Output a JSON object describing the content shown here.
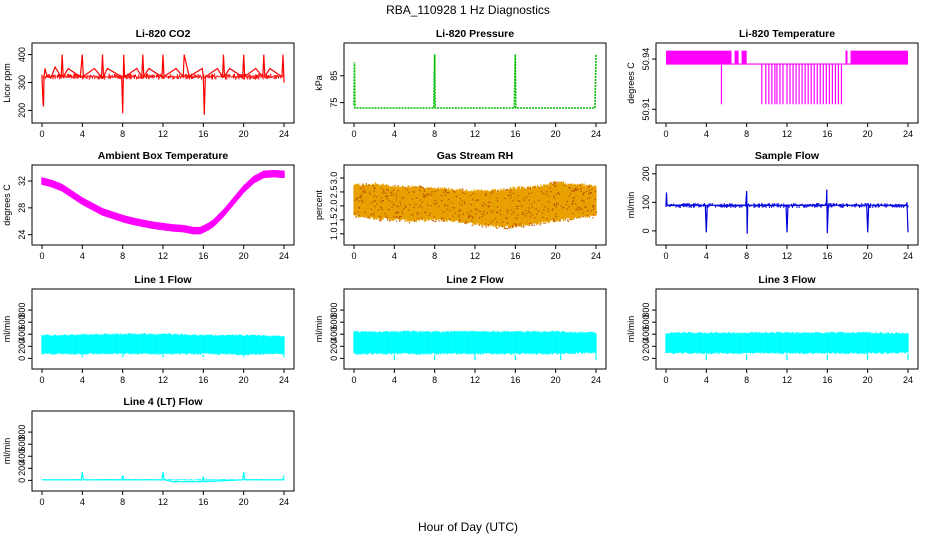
{
  "figure": {
    "title": "RBA_110928  1 Hz Diagnostics",
    "xlabel": "Hour of Day (UTC)"
  },
  "chart_data": [
    {
      "id": "co2",
      "type": "line",
      "title": "Li-820 CO2",
      "ylabel": "Licor ppm",
      "color": "#ff0000",
      "xlim": [
        0,
        24
      ],
      "ylim": [
        180,
        420
      ],
      "xticks": [
        0,
        4,
        8,
        12,
        16,
        20,
        24
      ],
      "yticks": [
        200,
        300,
        400
      ],
      "x": [
        0,
        0.1,
        0.15,
        0.2,
        0.3,
        0.5,
        0.9,
        1.3,
        1.9,
        2.0,
        2.1,
        2.6,
        3.8,
        4.0,
        4.1,
        5.2,
        5.9,
        6.0,
        6.1,
        6.5,
        7.9,
        8.0,
        8.1,
        8.2,
        9.4,
        9.9,
        10.0,
        10.1,
        10.6,
        11.9,
        12.0,
        12.1,
        13.3,
        14.0,
        14.1,
        14.6,
        15.9,
        16.0,
        16.1,
        16.2,
        17.4,
        17.9,
        18.0,
        18.1,
        18.6,
        19.9,
        20.0,
        20.1,
        21.2,
        21.9,
        22.0,
        22.1,
        22.6,
        23.8,
        23.9,
        24.0
      ],
      "y": [
        320,
        230,
        214,
        320,
        350,
        320,
        318,
        355,
        320,
        400,
        320,
        350,
        320,
        400,
        322,
        350,
        320,
        400,
        322,
        350,
        320,
        190,
        400,
        320,
        350,
        320,
        400,
        322,
        350,
        320,
        400,
        322,
        350,
        320,
        400,
        322,
        350,
        320,
        185,
        320,
        350,
        320,
        400,
        322,
        350,
        320,
        400,
        322,
        350,
        320,
        400,
        322,
        350,
        320,
        400,
        300
      ],
      "noise": [
        310,
        332
      ]
    },
    {
      "id": "pressure",
      "type": "line",
      "title": "Li-820 Pressure",
      "ylabel": "kPa",
      "color": "#00bb00",
      "xlim": [
        0,
        24
      ],
      "ylim": [
        70,
        95
      ],
      "xticks": [
        0,
        4,
        8,
        12,
        16,
        20,
        24
      ],
      "yticks": [
        75,
        85
      ],
      "x": [
        0,
        0.05,
        0.1,
        0.3,
        7.9,
        8.0,
        8.05,
        8.1,
        15.9,
        16.0,
        16.05,
        16.1,
        23.9,
        24.0
      ],
      "y": [
        74,
        90,
        73,
        73,
        73,
        93,
        73,
        73,
        73,
        93,
        73,
        73,
        73,
        93
      ]
    },
    {
      "id": "licor_temp",
      "type": "line",
      "title": "Li-820 Temperature",
      "ylabel": "degrees C",
      "color": "#ff00ff",
      "xlim": [
        0,
        24
      ],
      "ylim": [
        50.906,
        50.946
      ],
      "xticks": [
        0,
        4,
        8,
        12,
        16,
        20,
        24
      ],
      "yticks": [
        50.91,
        50.94
      ],
      "levels": [
        50.945,
        50.937,
        50.913
      ],
      "upper_segments": [
        [
          0,
          6.5
        ],
        [
          6.8,
          7.2
        ],
        [
          7.5,
          8.0
        ],
        [
          17.8,
          18.0
        ],
        [
          18.3,
          24
        ]
      ],
      "lower_ticks": [
        5.5,
        9.5,
        9.9,
        10.2,
        10.5,
        10.8,
        11.0,
        11.3,
        11.6,
        12.0,
        12.3,
        12.6,
        12.9,
        13.2,
        13.5,
        13.8,
        14.1,
        14.4,
        14.7,
        15.0,
        15.3,
        15.6,
        15.9,
        16.2,
        16.5,
        16.8,
        17.1,
        17.4
      ]
    },
    {
      "id": "box_temp",
      "type": "line",
      "title": "Ambient Box Temperature",
      "ylabel": "degrees C",
      "color": "#ff00ff",
      "xlim": [
        0,
        24
      ],
      "ylim": [
        23.5,
        33.5
      ],
      "xticks": [
        0,
        4,
        8,
        12,
        16,
        20,
        24
      ],
      "yticks": [
        24,
        28,
        32
      ],
      "x": [
        0,
        1,
        2,
        3,
        4,
        5,
        6,
        7,
        8,
        9,
        10,
        11,
        12,
        13,
        14,
        15,
        15.7,
        16.5,
        17,
        18,
        19,
        20,
        21,
        22,
        23,
        24
      ],
      "y": [
        32,
        31.6,
        31,
        30,
        29,
        28.2,
        27.4,
        26.9,
        26.4,
        26,
        25.7,
        25.4,
        25.2,
        25.0,
        24.9,
        24.6,
        24.6,
        25.2,
        25.7,
        27.2,
        29,
        30.8,
        32.2,
        33,
        33.1,
        33.0
      ],
      "band": 0.55
    },
    {
      "id": "gas_rh",
      "type": "area",
      "title": "Gas Stream RH",
      "ylabel": "percent",
      "color": "#e8a000",
      "xlim": [
        0,
        24
      ],
      "ylim": [
        0.85,
        3.25
      ],
      "xticks": [
        0,
        4,
        8,
        12,
        16,
        20,
        24
      ],
      "yticks": [
        1.0,
        1.5,
        2.0,
        2.5,
        3.0
      ],
      "x": [
        0,
        2,
        4,
        6,
        8,
        10,
        12,
        14,
        16,
        18,
        20,
        22,
        24
      ],
      "upper": [
        2.8,
        2.85,
        2.75,
        2.75,
        2.7,
        2.65,
        2.6,
        2.6,
        2.7,
        2.75,
        2.9,
        2.85,
        2.75
      ],
      "lower": [
        1.6,
        1.5,
        1.45,
        1.4,
        1.45,
        1.4,
        1.3,
        1.2,
        1.2,
        1.3,
        1.4,
        1.5,
        1.6
      ]
    },
    {
      "id": "sample_flow",
      "type": "line",
      "title": "Sample Flow",
      "ylabel": "ml/min",
      "color": "#0000dd",
      "xlim": [
        0,
        24
      ],
      "ylim": [
        -25,
        210
      ],
      "xticks": [
        0,
        4,
        8,
        12,
        16,
        20,
        24
      ],
      "yticks": [
        0,
        100,
        200
      ],
      "x": [
        0,
        0.05,
        0.1,
        0.2,
        3.9,
        4.0,
        4.1,
        7.9,
        8.0,
        8.05,
        8.1,
        11.9,
        12.0,
        12.1,
        15.9,
        15.95,
        16.0,
        16.1,
        19.9,
        20.0,
        20.1,
        23.8,
        23.9,
        24.0
      ],
      "y": [
        90,
        135,
        90,
        90,
        90,
        -5,
        90,
        90,
        140,
        -10,
        90,
        90,
        -5,
        90,
        90,
        145,
        -8,
        90,
        90,
        -5,
        90,
        90,
        100,
        -5
      ],
      "noise": [
        80,
        98
      ]
    },
    {
      "id": "line1",
      "type": "area",
      "title": "Line 1 Flow",
      "ylabel": "ml/min",
      "color": "#00ffff",
      "xlim": [
        0,
        24
      ],
      "ylim": [
        -60,
        1050
      ],
      "xticks": [
        0,
        4,
        8,
        12,
        16,
        20,
        24
      ],
      "yticks": [
        0,
        200,
        400,
        600,
        800
      ],
      "x": [
        0,
        4,
        8,
        12,
        16,
        20,
        24
      ],
      "upper": [
        400,
        410,
        420,
        420,
        400,
        400,
        380
      ],
      "lower": [
        60,
        60,
        60,
        60,
        60,
        50,
        60
      ],
      "dips": [
        4,
        8,
        12,
        16,
        20,
        24
      ],
      "dipvalue": 20
    },
    {
      "id": "line2",
      "type": "area",
      "title": "Line 2 Flow",
      "ylabel": "ml/min",
      "color": "#00ffff",
      "xlim": [
        0,
        24
      ],
      "ylim": [
        -60,
        1050
      ],
      "xticks": [
        0,
        4,
        8,
        12,
        16,
        20,
        24
      ],
      "yticks": [
        0,
        200,
        400,
        600,
        800
      ],
      "x": [
        0,
        4,
        8,
        12,
        16,
        20,
        24
      ],
      "upper": [
        460,
        460,
        460,
        460,
        460,
        460,
        440
      ],
      "lower": [
        60,
        60,
        60,
        60,
        60,
        60,
        80
      ],
      "dips": [
        4,
        8,
        12,
        16,
        20.5,
        24
      ],
      "dipvalue": -30
    },
    {
      "id": "line3",
      "type": "area",
      "title": "Line 3 Flow",
      "ylabel": "ml/min",
      "color": "#00ffff",
      "xlim": [
        0,
        24
      ],
      "ylim": [
        -60,
        1050
      ],
      "xticks": [
        0,
        4,
        8,
        12,
        16,
        20,
        24
      ],
      "yticks": [
        0,
        200,
        400,
        600,
        800
      ],
      "x": [
        0,
        4,
        8,
        12,
        16,
        20,
        24
      ],
      "upper": [
        440,
        440,
        440,
        440,
        440,
        440,
        430
      ],
      "lower": [
        70,
        70,
        70,
        70,
        70,
        70,
        80
      ],
      "dips": [
        4,
        8,
        12,
        16,
        20,
        24
      ],
      "dipvalue": -30
    },
    {
      "id": "line4",
      "type": "line",
      "title": "Line 4 (LT) Flow",
      "ylabel": "ml/min",
      "color": "#00ffff",
      "xlim": [
        0,
        24
      ],
      "ylim": [
        -60,
        1050
      ],
      "xticks": [
        0,
        4,
        8,
        12,
        16,
        20,
        24
      ],
      "yticks": [
        0,
        200,
        400,
        600,
        800
      ],
      "x": [
        0,
        3.9,
        4.0,
        4.1,
        7.9,
        8.0,
        8.1,
        11.9,
        12.0,
        12.1,
        13,
        15.9,
        16.0,
        16.1,
        19.9,
        20.0,
        20.1,
        23.9,
        24.0
      ],
      "y": [
        10,
        10,
        140,
        10,
        10,
        80,
        10,
        10,
        140,
        10,
        -20,
        -20,
        60,
        -20,
        10,
        140,
        10,
        10,
        80
      ],
      "noise": [
        -5,
        25
      ]
    }
  ]
}
